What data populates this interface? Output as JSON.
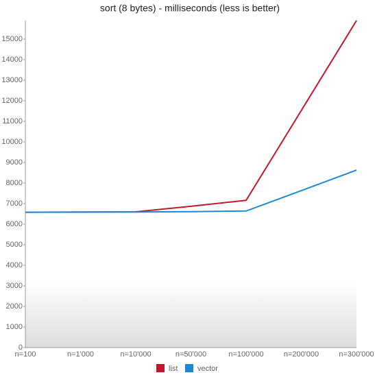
{
  "chart_data": {
    "type": "line",
    "title": "sort (8 bytes) - milliseconds (less is better)",
    "categories": [
      "n=100",
      "n=1'000",
      "n=10'000",
      "n=50'000",
      "n=100'000",
      "n=200'000",
      "n=300'000"
    ],
    "series": [
      {
        "name": "list",
        "color": "#c0182a",
        "values": [
          6580,
          6590,
          6600,
          6870,
          7160,
          11530,
          15900
        ]
      },
      {
        "name": "vector",
        "color": "#1e88d4",
        "values": [
          6580,
          6585,
          6590,
          6610,
          6640,
          7630,
          8630
        ]
      }
    ],
    "ylim": [
      0,
      15900
    ],
    "yticks": [
      0,
      1000,
      2000,
      3000,
      4000,
      5000,
      6000,
      7000,
      8000,
      9000,
      10000,
      11000,
      12000,
      13000,
      14000,
      15000
    ],
    "legend": "bottom"
  }
}
